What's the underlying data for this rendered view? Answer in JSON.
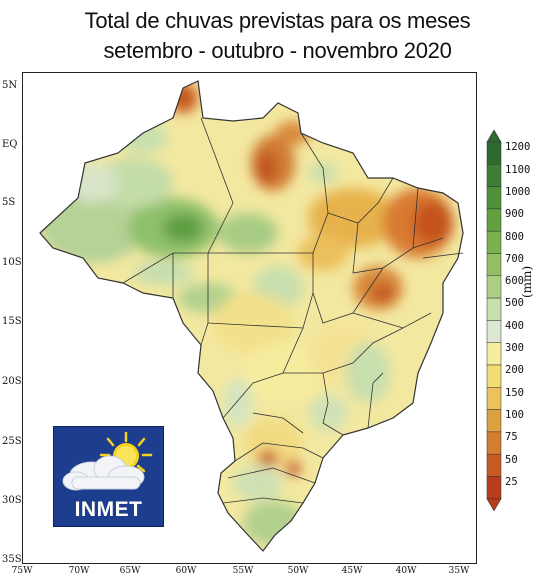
{
  "title_line1": "Total de chuvas previstas para os meses",
  "title_line2": "setembro - outubro - novembro 2020",
  "latitude_labels": [
    "5N",
    "EQ",
    "5S",
    "10S",
    "15S",
    "20S",
    "25S",
    "30S",
    "35S"
  ],
  "longitude_labels": [
    "75W",
    "70W",
    "65W",
    "60W",
    "55W",
    "50W",
    "45W",
    "40W",
    "35W"
  ],
  "legend": {
    "unit": "(mm)",
    "levels": [
      "1200",
      "1100",
      "1000",
      "900",
      "800",
      "700",
      "600",
      "500",
      "400",
      "300",
      "200",
      "150",
      "100",
      "75",
      "50",
      "25"
    ],
    "colors": [
      "#2e6b2e",
      "#3f7f35",
      "#4f9138",
      "#62a040",
      "#79b24e",
      "#92c063",
      "#adcf82",
      "#c8dfae",
      "#dde7d2",
      "#f5ee9c",
      "#f4dd74",
      "#ecc35a",
      "#dea140",
      "#d47f30",
      "#c85a24",
      "#b83d1c"
    ]
  },
  "logo": {
    "text": "INMET",
    "icon": "sun-cloud-icon"
  }
}
